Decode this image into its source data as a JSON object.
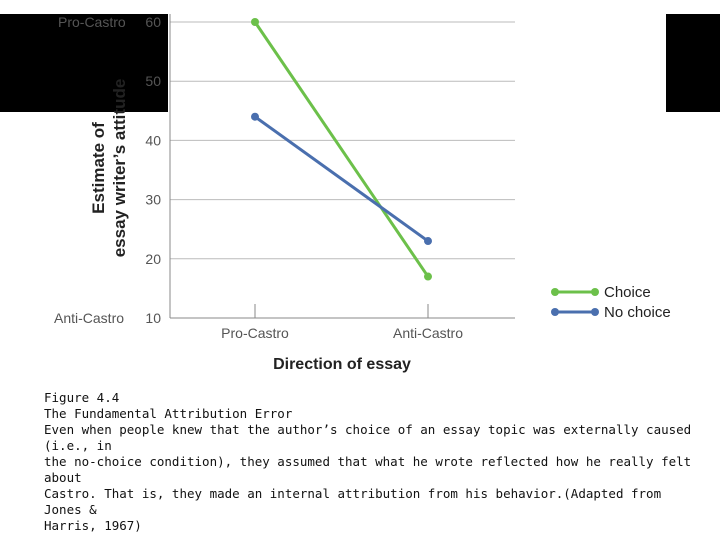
{
  "chart_data": {
    "type": "line",
    "categories": [
      "Pro-Castro",
      "Anti-Castro"
    ],
    "series": [
      {
        "name": "Choice",
        "values": [
          60,
          17
        ],
        "color": "#6cc04a"
      },
      {
        "name": "No choice",
        "values": [
          44,
          23
        ],
        "color": "#4a6fae"
      }
    ],
    "ylim": [
      10,
      60
    ],
    "yticks": [
      10,
      20,
      30,
      40,
      50,
      60
    ],
    "ylabel_lines": [
      "Estimate of",
      "essay writer’s attitude"
    ],
    "xlabel": "Direction of essay",
    "y_end_labels": {
      "top": "Pro-Castro",
      "bottom": "Anti-Castro"
    },
    "grid": true,
    "legend": "right"
  },
  "caption": {
    "figure_number": "Figure 4.4",
    "title": "The Fundamental Attribution Error",
    "lines": [
      "Even when people knew that the author’s choice of an essay topic was externally caused (i.e., in",
      "the no-choice condition), they assumed that what he wrote reflected how he really felt about",
      "Castro. That is, they made an internal attribution from his behavior.(Adapted from Jones &",
      "Harris, 1967)"
    ]
  }
}
